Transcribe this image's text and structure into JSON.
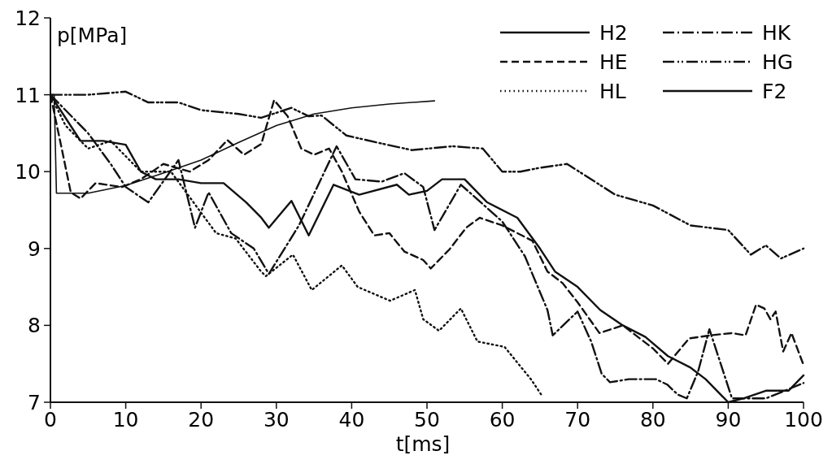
{
  "chart_data": {
    "type": "line",
    "xlabel": "t[ms]",
    "ylabel": "p[MPa]",
    "xlim": [
      0,
      100
    ],
    "ylim": [
      7,
      12
    ],
    "xticks": [
      0,
      10,
      20,
      30,
      40,
      50,
      60,
      70,
      80,
      90,
      100
    ],
    "yticks": [
      7,
      8,
      9,
      10,
      11,
      12
    ],
    "grid": false,
    "legend": "top right",
    "marker": "none",
    "series": [
      {
        "name": "H2",
        "color": "#111111",
        "line_style": "solid",
        "x": [
          0,
          2,
          4,
          7,
          10,
          12,
          14,
          17,
          20,
          23,
          26,
          28,
          29,
          32,
          34.3,
          37.6,
          41,
          46,
          47.6,
          50,
          52,
          55,
          58,
          62,
          65,
          67,
          70,
          73,
          76,
          79,
          82,
          85,
          87,
          89,
          90,
          92,
          95,
          98,
          100
        ],
        "values": [
          11,
          10.7,
          10.4,
          10.4,
          10.35,
          10.0,
          9.9,
          9.9,
          9.85,
          9.85,
          9.6,
          9.4,
          9.27,
          9.62,
          9.17,
          9.83,
          9.7,
          9.83,
          9.7,
          9.75,
          9.9,
          9.9,
          9.6,
          9.4,
          9.0,
          8.7,
          8.5,
          8.2,
          8.0,
          7.85,
          7.6,
          7.45,
          7.3,
          7.1,
          7.0,
          7.05,
          7.15,
          7.15,
          7.35
        ]
      },
      {
        "name": "HE",
        "color": "#111111",
        "line_style": "dashed",
        "x": [
          0,
          1.5,
          2.7,
          4,
          6,
          9.5,
          12,
          15,
          18.5,
          21,
          23.5,
          25.7,
          28,
          29.7,
          31.5,
          33.3,
          35,
          37,
          38.7,
          41,
          43,
          45,
          47,
          49.5,
          50.5,
          53,
          55.2,
          57,
          60,
          62,
          64,
          66,
          68,
          70,
          72.9,
          76,
          80,
          82,
          84.8,
          87.6,
          90.5,
          92.3,
          93.7,
          94.8,
          95.6,
          96.3,
          97.3,
          98.4,
          99.9
        ],
        "values": [
          11,
          10.3,
          9.73,
          9.65,
          9.85,
          9.8,
          9.9,
          10.1,
          10.0,
          10.15,
          10.41,
          10.22,
          10.36,
          10.93,
          10.72,
          10.3,
          10.22,
          10.3,
          10.0,
          9.48,
          9.17,
          9.2,
          8.96,
          8.85,
          8.74,
          8.99,
          9.27,
          9.4,
          9.3,
          9.2,
          9.1,
          8.7,
          8.55,
          8.3,
          7.9,
          8.0,
          7.7,
          7.5,
          7.83,
          7.87,
          7.9,
          7.87,
          8.27,
          8.22,
          8.08,
          8.18,
          7.66,
          7.9,
          7.51
        ]
      },
      {
        "name": "HL",
        "color": "#111111",
        "line_style": "dotted",
        "x": [
          0,
          2,
          5,
          8,
          12,
          16,
          19,
          22,
          24.6,
          27.9,
          28.6,
          32.2,
          34.7,
          38.7,
          40.8,
          45.1,
          48.4,
          49.5,
          51.6,
          54.5,
          56.7,
          60.3,
          63.8,
          65.3
        ],
        "values": [
          11,
          10.6,
          10.3,
          10.4,
          10.0,
          10.0,
          9.6,
          9.2,
          9.13,
          8.71,
          8.64,
          8.92,
          8.46,
          8.78,
          8.5,
          8.32,
          8.46,
          8.08,
          7.93,
          8.22,
          7.79,
          7.72,
          7.3,
          7.08
        ]
      },
      {
        "name": "HK",
        "color": "#111111",
        "line_style": "dashdot",
        "x": [
          0,
          2,
          5,
          8,
          10,
          13,
          17,
          19.2,
          21,
          24,
          27,
          29,
          33,
          38,
          40.5,
          44,
          47,
          49.5,
          51,
          54.5,
          56,
          60,
          63,
          66,
          66.7,
          70,
          71.8,
          73.2,
          74.3,
          76.8,
          80.4,
          81.9,
          83.3,
          84.5,
          86,
          87.5,
          89,
          90.5,
          95,
          100
        ],
        "values": [
          11,
          10.8,
          10.5,
          10.1,
          9.8,
          9.6,
          10.15,
          9.27,
          9.73,
          9.2,
          9.0,
          8.67,
          9.3,
          10.33,
          9.9,
          9.87,
          9.98,
          9.8,
          9.24,
          9.83,
          9.7,
          9.35,
          8.9,
          8.2,
          7.87,
          8.18,
          7.79,
          7.37,
          7.26,
          7.3,
          7.3,
          7.23,
          7.1,
          7.05,
          7.4,
          7.95,
          7.5,
          7.05,
          7.05,
          7.25
        ]
      },
      {
        "name": "HG",
        "color": "#111111",
        "line_style": "dashdotdot",
        "x": [
          0,
          5,
          10,
          13,
          17,
          20,
          25,
          28,
          32,
          34.3,
          36,
          39.3,
          43.3,
          48,
          53.4,
          57.4,
          60,
          62.4,
          65,
          68.6,
          75,
          80,
          85,
          90,
          93,
          95,
          97,
          100
        ],
        "values": [
          11,
          11,
          11.04,
          10.9,
          10.9,
          10.8,
          10.75,
          10.7,
          10.83,
          10.72,
          10.73,
          10.47,
          10.38,
          10.28,
          10.33,
          10.3,
          10.0,
          10.0,
          10.05,
          10.1,
          9.7,
          9.56,
          9.3,
          9.24,
          8.92,
          9.04,
          8.87,
          9.0
        ]
      },
      {
        "name": "F2",
        "color": "#111111",
        "line_style": "solid",
        "x": [
          0,
          0.5,
          0.8,
          5,
          10,
          15,
          20,
          25,
          30,
          35,
          40,
          45,
          51
        ],
        "values": [
          11,
          11,
          9.72,
          9.72,
          9.82,
          9.98,
          10.15,
          10.38,
          10.6,
          10.75,
          10.83,
          10.88,
          10.92
        ]
      }
    ]
  }
}
